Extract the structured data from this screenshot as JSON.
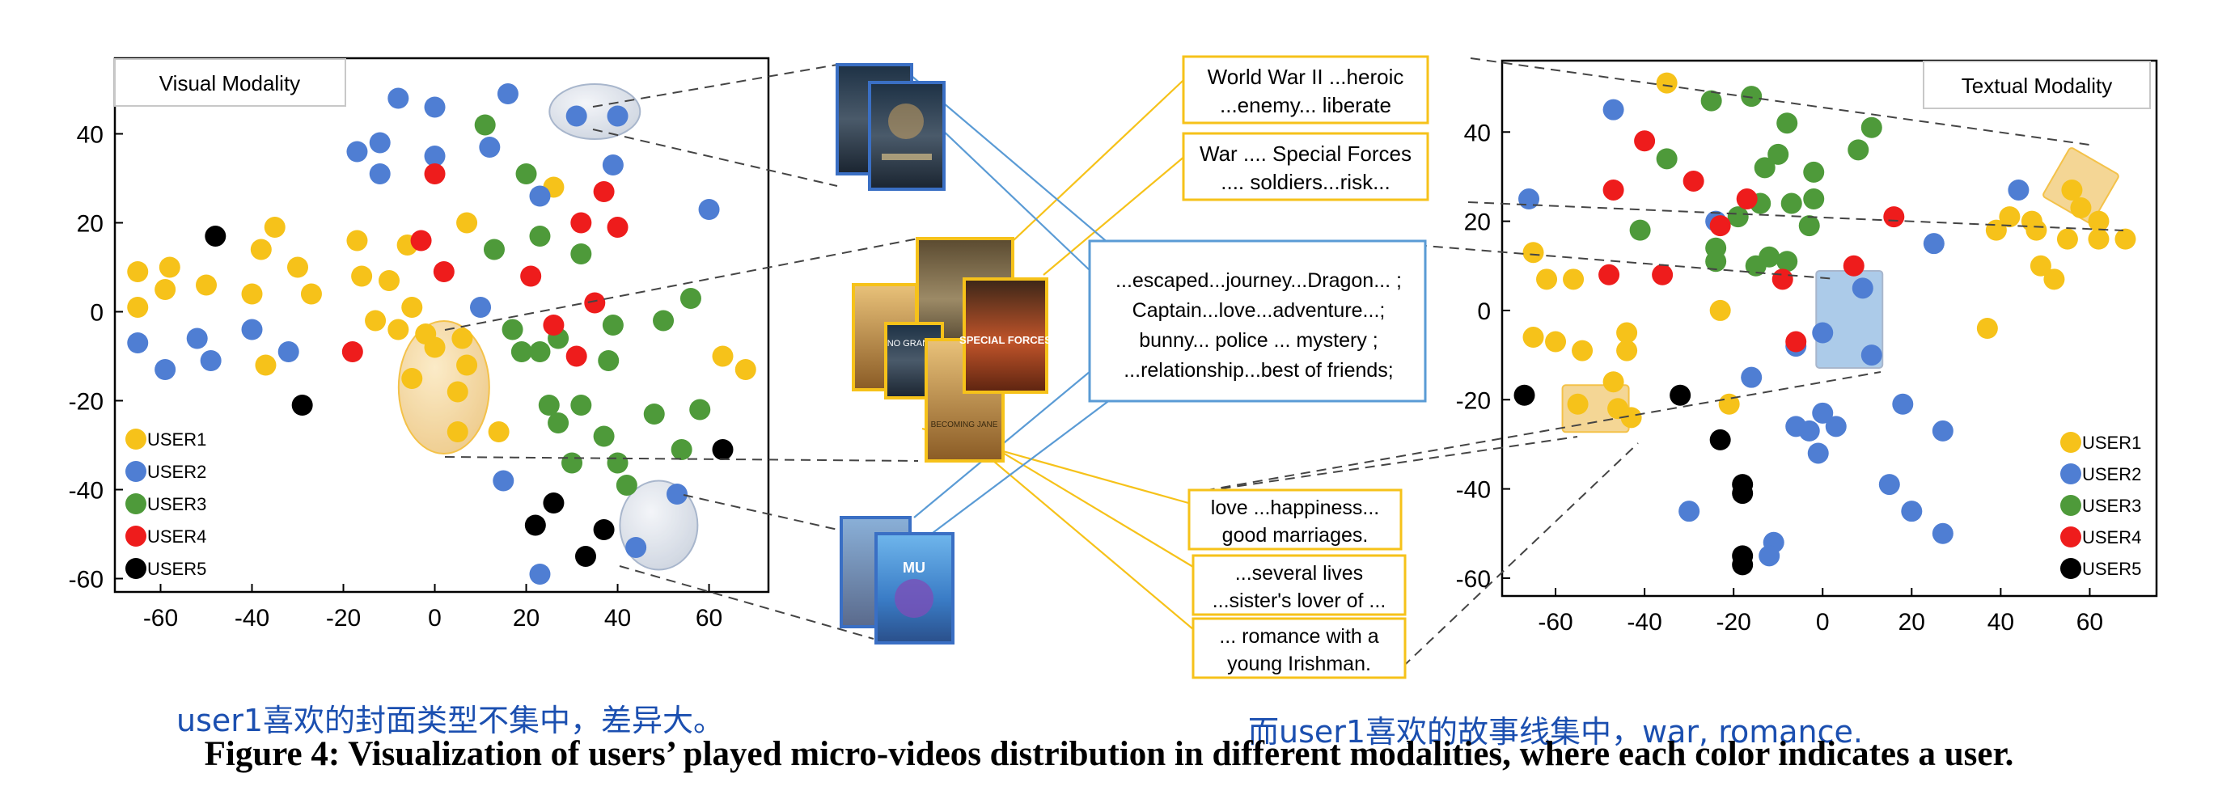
{
  "figure": {
    "caption": "Figure 4: Visualization of users’ played micro-videos distribution in different modalities, where each color indicates a user.",
    "note_left": "user1喜欢的封面类型不集中，差异大。",
    "note_right": "而user1喜欢的故事线集中，war, romance."
  },
  "colors": {
    "USER1": "#f6c21a",
    "USER2": "#4f7ed3",
    "USER3": "#4e9a3a",
    "USER4": "#ee1c1c",
    "USER5": "#000000",
    "yellow_box": "#f3b82a",
    "blue_box": "#5a9bd5"
  },
  "chart_data": [
    {
      "type": "scatter",
      "title": "Visual Modality",
      "xlim": [
        -70,
        73
      ],
      "ylim": [
        -63,
        57
      ],
      "xticks": [
        -60,
        -40,
        -20,
        0,
        20,
        40,
        60
      ],
      "yticks": [
        40,
        20,
        0,
        -20,
        -40,
        -60
      ],
      "legend_position": "bottom-left",
      "series": [
        {
          "name": "USER1",
          "points": [
            [
              -65,
              9
            ],
            [
              -58,
              10
            ],
            [
              -59,
              5
            ],
            [
              -50,
              6
            ],
            [
              -65,
              1
            ],
            [
              -40,
              4
            ],
            [
              -38,
              14
            ],
            [
              -35,
              19
            ],
            [
              -30,
              10
            ],
            [
              -27,
              4
            ],
            [
              -37,
              -12
            ],
            [
              -17,
              16
            ],
            [
              -16,
              8
            ],
            [
              -13,
              -2
            ],
            [
              -10,
              7
            ],
            [
              -8,
              -4
            ],
            [
              -6,
              15
            ],
            [
              -5,
              1
            ],
            [
              -2,
              -5
            ],
            [
              0,
              -8
            ],
            [
              6,
              -6
            ],
            [
              7,
              -12
            ],
            [
              -5,
              -15
            ],
            [
              5,
              -18
            ],
            [
              5,
              -27
            ],
            [
              14,
              -27
            ],
            [
              7,
              20
            ],
            [
              26,
              28
            ],
            [
              63,
              -10
            ],
            [
              68,
              -13
            ]
          ]
        },
        {
          "name": "USER2",
          "points": [
            [
              -65,
              -7
            ],
            [
              -59,
              -13
            ],
            [
              -52,
              -6
            ],
            [
              -49,
              -11
            ],
            [
              -40,
              -4
            ],
            [
              -32,
              -9
            ],
            [
              -17,
              36
            ],
            [
              -12,
              38
            ],
            [
              -12,
              31
            ],
            [
              -8,
              48
            ],
            [
              0,
              46
            ],
            [
              0,
              35
            ],
            [
              12,
              37
            ],
            [
              16,
              49
            ],
            [
              23,
              26
            ],
            [
              31,
              44
            ],
            [
              40,
              44
            ],
            [
              39,
              33
            ],
            [
              60,
              23
            ],
            [
              10,
              1
            ],
            [
              15,
              -38
            ],
            [
              53,
              -41
            ],
            [
              44,
              -53
            ],
            [
              23,
              -59
            ]
          ]
        },
        {
          "name": "USER3",
          "points": [
            [
              11,
              42
            ],
            [
              20,
              31
            ],
            [
              23,
              17
            ],
            [
              32,
              13
            ],
            [
              13,
              14
            ],
            [
              17,
              -4
            ],
            [
              23,
              -9
            ],
            [
              27,
              -6
            ],
            [
              39,
              -3
            ],
            [
              38,
              -11
            ],
            [
              50,
              -2
            ],
            [
              56,
              3
            ],
            [
              19,
              -9
            ],
            [
              25,
              -21
            ],
            [
              27,
              -25
            ],
            [
              32,
              -21
            ],
            [
              37,
              -28
            ],
            [
              48,
              -23
            ],
            [
              54,
              -31
            ],
            [
              40,
              -34
            ],
            [
              58,
              -22
            ],
            [
              30,
              -34
            ],
            [
              42,
              -39
            ]
          ]
        },
        {
          "name": "USER4",
          "points": [
            [
              -18,
              -9
            ],
            [
              -3,
              16
            ],
            [
              2,
              9
            ],
            [
              0,
              31
            ],
            [
              21,
              8
            ],
            [
              32,
              20
            ],
            [
              37,
              27
            ],
            [
              40,
              19
            ],
            [
              35,
              2
            ],
            [
              26,
              -3
            ],
            [
              31,
              -10
            ]
          ]
        },
        {
          "name": "USER5",
          "points": [
            [
              -48,
              17
            ],
            [
              -29,
              -21
            ],
            [
              63,
              -31
            ],
            [
              26,
              -43
            ],
            [
              22,
              -48
            ],
            [
              37,
              -49
            ],
            [
              33,
              -55
            ]
          ]
        }
      ],
      "highlights": [
        {
          "shape": "ellipse",
          "color": "yellow",
          "center": [
            2,
            -17
          ]
        },
        {
          "shape": "ellipse",
          "color": "blue",
          "center": [
            35,
            45
          ]
        },
        {
          "shape": "ellipse",
          "color": "blue",
          "center": [
            49,
            -48
          ]
        }
      ]
    },
    {
      "type": "scatter",
      "title": "Textual Modality",
      "xlim": [
        -72,
        75
      ],
      "ylim": [
        -64,
        56
      ],
      "xticks": [
        -60,
        -40,
        -20,
        0,
        20,
        40,
        60
      ],
      "yticks": [
        40,
        20,
        0,
        -20,
        -40,
        -60
      ],
      "legend_position": "bottom-right",
      "series": [
        {
          "name": "USER1",
          "points": [
            [
              -35,
              51
            ],
            [
              -65,
              13
            ],
            [
              -62,
              7
            ],
            [
              -56,
              7
            ],
            [
              -65,
              -6
            ],
            [
              -60,
              -7
            ],
            [
              -54,
              -9
            ],
            [
              -44,
              -5
            ],
            [
              -44,
              -9
            ],
            [
              -47,
              -16
            ],
            [
              -55,
              -21
            ],
            [
              -46,
              -22
            ],
            [
              -43,
              -24
            ],
            [
              -21,
              -21
            ],
            [
              -23,
              0
            ],
            [
              37,
              -4
            ],
            [
              39,
              18
            ],
            [
              42,
              21
            ],
            [
              47,
              20
            ],
            [
              48,
              18
            ],
            [
              49,
              10
            ],
            [
              52,
              7
            ],
            [
              55,
              16
            ],
            [
              56,
              27
            ],
            [
              58,
              23
            ],
            [
              62,
              16
            ],
            [
              68,
              16
            ],
            [
              62,
              20
            ]
          ]
        },
        {
          "name": "USER2",
          "points": [
            [
              -66,
              25
            ],
            [
              -47,
              45
            ],
            [
              44,
              27
            ],
            [
              25,
              15
            ],
            [
              -24,
              20
            ],
            [
              -16,
              -15
            ],
            [
              -6,
              -8
            ],
            [
              0,
              -5
            ],
            [
              9,
              5
            ],
            [
              11,
              -10
            ],
            [
              -6,
              -26
            ],
            [
              -3,
              -27
            ],
            [
              0,
              -23
            ],
            [
              3,
              -26
            ],
            [
              -1,
              -32
            ],
            [
              18,
              -21
            ],
            [
              27,
              -27
            ],
            [
              15,
              -39
            ],
            [
              20,
              -45
            ],
            [
              27,
              -50
            ],
            [
              -30,
              -45
            ],
            [
              -11,
              -52
            ],
            [
              -12,
              -55
            ]
          ]
        },
        {
          "name": "USER3",
          "points": [
            [
              -25,
              47
            ],
            [
              -16,
              48
            ],
            [
              -35,
              34
            ],
            [
              -8,
              42
            ],
            [
              -10,
              35
            ],
            [
              -13,
              32
            ],
            [
              -14,
              24
            ],
            [
              -7,
              24
            ],
            [
              -2,
              31
            ],
            [
              -2,
              25
            ],
            [
              -3,
              19
            ],
            [
              -15,
              10
            ],
            [
              -24,
              14
            ],
            [
              -24,
              11
            ],
            [
              8,
              36
            ],
            [
              11,
              41
            ],
            [
              -41,
              18
            ],
            [
              -19,
              21
            ],
            [
              -8,
              11
            ],
            [
              -12,
              12
            ]
          ]
        },
        {
          "name": "USER4",
          "points": [
            [
              -40,
              38
            ],
            [
              -47,
              27
            ],
            [
              -29,
              29
            ],
            [
              -17,
              25
            ],
            [
              -23,
              19
            ],
            [
              -48,
              8
            ],
            [
              -36,
              8
            ],
            [
              -9,
              7
            ],
            [
              7,
              10
            ],
            [
              16,
              21
            ],
            [
              -6,
              -7
            ]
          ]
        },
        {
          "name": "USER5",
          "points": [
            [
              -67,
              -19
            ],
            [
              -32,
              -19
            ],
            [
              -23,
              -29
            ],
            [
              -18,
              -39
            ],
            [
              -18,
              -41
            ],
            [
              -18,
              -55
            ],
            [
              -18,
              -57
            ]
          ]
        }
      ],
      "highlights": [
        {
          "shape": "rect",
          "color": "yellow",
          "center": [
            -51,
            -22
          ]
        },
        {
          "shape": "rect",
          "color": "blue",
          "center": [
            6,
            -2
          ]
        },
        {
          "shape": "rect",
          "color": "yellow",
          "center": [
            58,
            28
          ]
        }
      ]
    }
  ],
  "center": {
    "texts_top": [
      [
        "World War II ...heroic",
        "...enemy... liberate"
      ],
      [
        "War ....  Special Forces",
        ".... soldiers...risk..."
      ]
    ],
    "texts_mid": [
      "...escaped...journey...Dragon... ;",
      "Captain...love...adventure...;",
      "bunny... police ...  mystery ;",
      "...relationship...best of friends;"
    ],
    "texts_bottom": [
      [
        "love ...happiness...",
        "good marriages."
      ],
      [
        "...several lives",
        "...sister's lover of ..."
      ],
      [
        "... romance with a",
        "young Irishman."
      ]
    ],
    "poster_texts": [
      "SPECIAL FORCES",
      "NO GRANDE",
      "BECOMING JANE",
      "MU"
    ]
  }
}
